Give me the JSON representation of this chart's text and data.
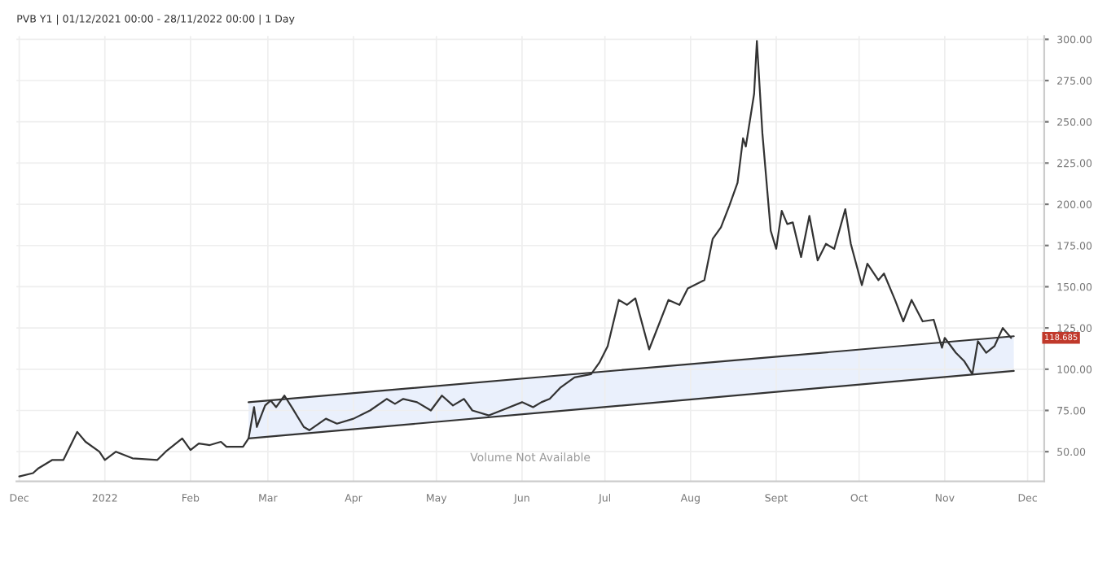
{
  "chart_data": {
    "type": "line",
    "title": "PVB Y1 | 01/12/2021 00:00 - 28/11/2022 00:00 | 1 Day",
    "x": [
      "2021-12-01",
      "2021-12-06",
      "2021-12-08",
      "2021-12-13",
      "2021-12-17",
      "2021-12-22",
      "2021-12-25",
      "2021-12-30",
      "2022-01-01",
      "2022-01-05",
      "2022-01-11",
      "2022-01-20",
      "2022-01-23",
      "2022-01-29",
      "2022-02-01",
      "2022-02-04",
      "2022-02-08",
      "2022-02-12",
      "2022-02-14",
      "2022-02-20",
      "2022-02-22",
      "2022-02-24",
      "2022-02-25",
      "2022-02-28",
      "2022-03-02",
      "2022-03-04",
      "2022-03-07",
      "2022-03-10",
      "2022-03-14",
      "2022-03-16",
      "2022-03-22",
      "2022-03-26",
      "2022-04-01",
      "2022-04-07",
      "2022-04-13",
      "2022-04-16",
      "2022-04-19",
      "2022-04-24",
      "2022-04-29",
      "2022-05-03",
      "2022-05-07",
      "2022-05-11",
      "2022-05-14",
      "2022-05-20",
      "2022-05-26",
      "2022-06-01",
      "2022-06-05",
      "2022-06-08",
      "2022-06-11",
      "2022-06-15",
      "2022-06-20",
      "2022-06-26",
      "2022-06-29",
      "2022-07-02",
      "2022-07-06",
      "2022-07-09",
      "2022-07-12",
      "2022-07-17",
      "2022-07-24",
      "2022-07-28",
      "2022-07-31",
      "2022-08-06",
      "2022-08-09",
      "2022-08-12",
      "2022-08-15",
      "2022-08-18",
      "2022-08-20",
      "2022-08-21",
      "2022-08-24",
      "2022-08-25",
      "2022-08-27",
      "2022-08-30",
      "2022-09-01",
      "2022-09-03",
      "2022-09-05",
      "2022-09-07",
      "2022-09-10",
      "2022-09-13",
      "2022-09-16",
      "2022-09-19",
      "2022-09-22",
      "2022-09-26",
      "2022-09-28",
      "2022-10-02",
      "2022-10-04",
      "2022-10-08",
      "2022-10-10",
      "2022-10-14",
      "2022-10-17",
      "2022-10-20",
      "2022-10-24",
      "2022-10-28",
      "2022-10-31",
      "2022-11-01",
      "2022-11-05",
      "2022-11-08",
      "2022-11-11",
      "2022-11-13",
      "2022-11-16",
      "2022-11-19",
      "2022-11-22",
      "2022-11-25"
    ],
    "series": [
      {
        "color": "#333333",
        "values": [
          35,
          37,
          40,
          45,
          45,
          62,
          56,
          50,
          45,
          50,
          46,
          45,
          50,
          58,
          51,
          55,
          54,
          56,
          53,
          53,
          58,
          77,
          65,
          78,
          81,
          77,
          84,
          76,
          65,
          63,
          70,
          67,
          70,
          75,
          82,
          79,
          82,
          80,
          75,
          84,
          78,
          82,
          75,
          72,
          76,
          80,
          77,
          80,
          82,
          89,
          95,
          97,
          104,
          114,
          142,
          139,
          143,
          112,
          142,
          139,
          149,
          154,
          179,
          186,
          199,
          213,
          240,
          235,
          267,
          299,
          243,
          184,
          173,
          196,
          188,
          189,
          168,
          193,
          166,
          176,
          173,
          197,
          176,
          151,
          164,
          154,
          158,
          142,
          129,
          142,
          129,
          130,
          113,
          119,
          110,
          105,
          97,
          117,
          110,
          114,
          125,
          119
        ]
      },
      {
        "type": "line",
        "color": "#333333",
        "x": [
          "2022-02-22",
          "2022-11-26"
        ],
        "values": [
          80,
          120
        ],
        "lower": [
          58,
          99
        ],
        "upper": [
          80,
          120
        ]
      },
      {
        "type": "line",
        "color": "#333333",
        "x": [
          "2022-02-22",
          "2022-11-26"
        ],
        "values": [
          58,
          99
        ]
      }
    ],
    "xlim": [
      "2021-11-30",
      "2022-12-07"
    ],
    "xticks": [
      {
        "value": "2021-12-01",
        "label": "Dec"
      },
      {
        "value": "2022-01-01",
        "label": "2022"
      },
      {
        "value": "2022-02-01",
        "label": "Feb"
      },
      {
        "value": "2022-03-01",
        "label": "Mar"
      },
      {
        "value": "2022-04-01",
        "label": "Apr"
      },
      {
        "value": "2022-05-01",
        "label": "May"
      },
      {
        "value": "2022-06-01",
        "label": "Jun"
      },
      {
        "value": "2022-07-01",
        "label": "Jul"
      },
      {
        "value": "2022-08-01",
        "label": "Aug"
      },
      {
        "value": "2022-09-01",
        "label": "Sept"
      },
      {
        "value": "2022-10-01",
        "label": "Oct"
      },
      {
        "value": "2022-11-01",
        "label": "Nov"
      },
      {
        "value": "2022-12-01",
        "label": "Dec"
      }
    ],
    "ylim": [
      32,
      302
    ],
    "yticks": [
      {
        "value": 50,
        "label": "50.00"
      },
      {
        "value": 75,
        "label": "75.00"
      },
      {
        "value": 100,
        "label": "100.00"
      },
      {
        "value": 125,
        "label": "125.00"
      },
      {
        "value": 150,
        "label": "150.00"
      },
      {
        "value": 175,
        "label": "175.00"
      },
      {
        "value": 200,
        "label": "200.00"
      },
      {
        "value": 225,
        "label": "225.00"
      },
      {
        "value": 250,
        "label": "250.00"
      },
      {
        "value": 275,
        "label": "275.00"
      },
      {
        "value": 300,
        "label": "300.00"
      }
    ],
    "grid": true,
    "annotations": [
      "Volume Not Available",
      {
        "text": "118.685",
        "y": 119
      }
    ]
  }
}
